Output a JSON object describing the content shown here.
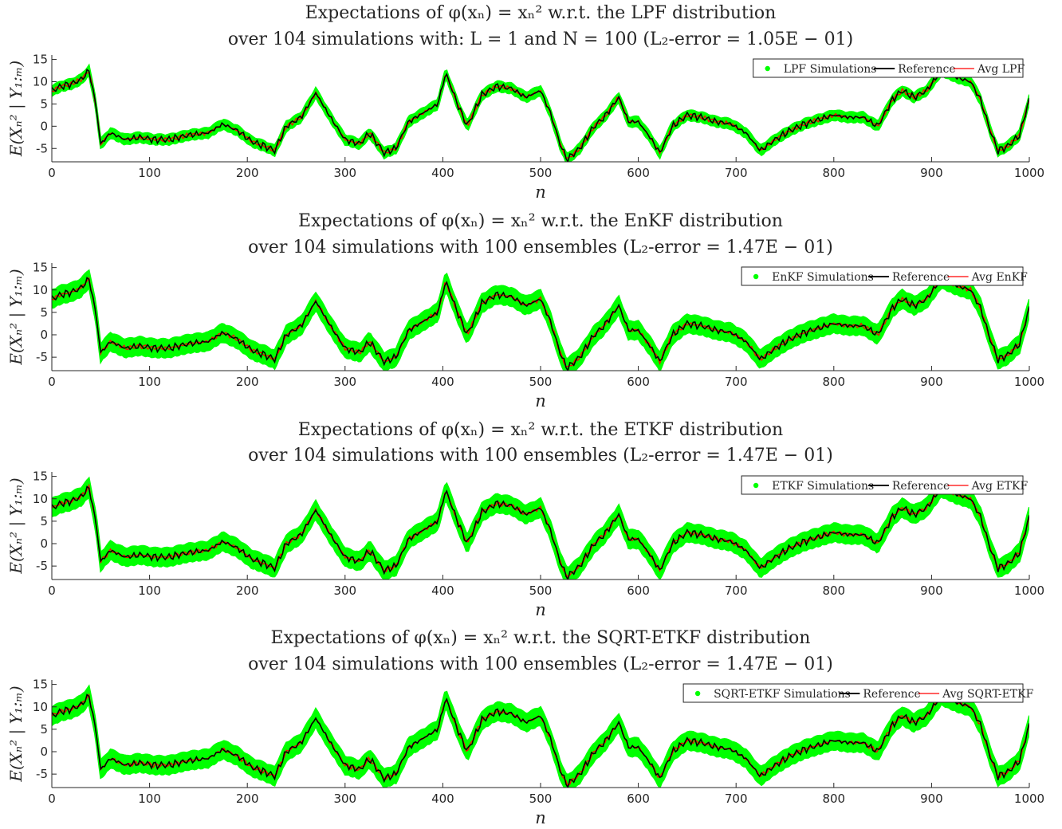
{
  "chart_data": [
    {
      "type": "line",
      "title": "Expectations of φ(xₙ) = xₙ² w.r.t. the LPF distribution",
      "subtitle": "over 104 simulations with: L = 1 and N = 100 (L₂-error = 1.05E − 01)",
      "xlabel": "n",
      "ylabel": "E(Xₙ² | Y₁:ₘ)",
      "xlim": [
        0,
        1000
      ],
      "ylim": [
        -8,
        16
      ],
      "xticks": [
        0,
        100,
        200,
        300,
        400,
        500,
        600,
        700,
        800,
        900,
        1000
      ],
      "yticks": [
        -5,
        0,
        5,
        10,
        15
      ],
      "band_halfwidth": 0.9,
      "grid": false,
      "legend_position": "top-right",
      "series": [
        {
          "name": "LPF Simulations",
          "color": "#00ff00",
          "style": "band"
        },
        {
          "name": "Reference",
          "color": "#000000",
          "style": "line"
        },
        {
          "name": "Avg LPF",
          "color": "#ff0000",
          "style": "line"
        }
      ]
    },
    {
      "type": "line",
      "title": "Expectations of φ(xₙ) = xₙ² w.r.t. the EnKF distribution",
      "subtitle": "over 104 simulations with 100 ensembles (L₂-error = 1.47E − 01)",
      "xlabel": "n",
      "ylabel": "E(Xₙ² | Y₁:ₘ)",
      "xlim": [
        0,
        1000
      ],
      "ylim": [
        -8,
        16
      ],
      "xticks": [
        0,
        100,
        200,
        300,
        400,
        500,
        600,
        700,
        800,
        900,
        1000
      ],
      "yticks": [
        -5,
        0,
        5,
        10,
        15
      ],
      "band_halfwidth": 1.8,
      "grid": false,
      "legend_position": "top-right",
      "series": [
        {
          "name": "EnKF Simulations",
          "color": "#00ff00",
          "style": "band"
        },
        {
          "name": "Reference",
          "color": "#000000",
          "style": "line"
        },
        {
          "name": "Avg EnKF",
          "color": "#ff0000",
          "style": "line"
        }
      ]
    },
    {
      "type": "line",
      "title": "Expectations of φ(xₙ) = xₙ² w.r.t. the ETKF distribution",
      "subtitle": "over 104 simulations with 100 ensembles (L₂-error = 1.47E − 01)",
      "xlabel": "n",
      "ylabel": "E(Xₙ² | Y₁:ₘ)",
      "xlim": [
        0,
        1000
      ],
      "ylim": [
        -8,
        16
      ],
      "xticks": [
        0,
        100,
        200,
        300,
        400,
        500,
        600,
        700,
        800,
        900,
        1000
      ],
      "yticks": [
        -5,
        0,
        5,
        10,
        15
      ],
      "band_halfwidth": 1.8,
      "grid": false,
      "legend_position": "top-right",
      "series": [
        {
          "name": "ETKF Simulations",
          "color": "#00ff00",
          "style": "band"
        },
        {
          "name": "Reference",
          "color": "#000000",
          "style": "line"
        },
        {
          "name": "Avg ETKF",
          "color": "#ff0000",
          "style": "line"
        }
      ]
    },
    {
      "type": "line",
      "title": "Expectations of φ(xₙ) = xₙ² w.r.t. the SQRT-ETKF distribution",
      "subtitle": "over 104 simulations with 100 ensembles (L₂-error = 1.47E − 01)",
      "xlabel": "n",
      "ylabel": "E(Xₙ² | Y₁:ₘ)",
      "xlim": [
        0,
        1000
      ],
      "ylim": [
        -8,
        16
      ],
      "xticks": [
        0,
        100,
        200,
        300,
        400,
        500,
        600,
        700,
        800,
        900,
        1000
      ],
      "yticks": [
        -5,
        0,
        5,
        10,
        15
      ],
      "band_halfwidth": 1.8,
      "grid": false,
      "legend_position": "top-right",
      "series": [
        {
          "name": "SQRT-ETKF Simulations",
          "color": "#00ff00",
          "style": "band"
        },
        {
          "name": "Reference",
          "color": "#000000",
          "style": "line"
        },
        {
          "name": "Avg SQRT-ETKF",
          "color": "#ff0000",
          "style": "line"
        }
      ]
    }
  ],
  "reference_curve": {
    "x": [
      0,
      10,
      20,
      30,
      38,
      45,
      50,
      60,
      75,
      90,
      105,
      120,
      140,
      160,
      175,
      190,
      205,
      218,
      228,
      240,
      255,
      270,
      285,
      300,
      315,
      325,
      340,
      352,
      365,
      380,
      395,
      403,
      415,
      425,
      440,
      455,
      470,
      485,
      500,
      510,
      520,
      527,
      540,
      555,
      565,
      580,
      590,
      600,
      612,
      622,
      635,
      650,
      665,
      680,
      695,
      710,
      725,
      740,
      755,
      770,
      785,
      800,
      815,
      830,
      845,
      860,
      870,
      882,
      895,
      910,
      925,
      940,
      950,
      960,
      968,
      978,
      990,
      1000
    ],
    "y": [
      8,
      9,
      9.5,
      10.5,
      12.5,
      5,
      -4,
      -1.5,
      -3,
      -2.5,
      -3,
      -3,
      -2,
      -1.5,
      0.5,
      -1,
      -3.5,
      -4.5,
      -5.5,
      0,
      2,
      7.5,
      2,
      -3,
      -4,
      -1.5,
      -6,
      -5,
      1,
      3,
      5,
      12,
      5,
      0,
      7,
      9,
      8.5,
      6.5,
      8,
      3,
      -4,
      -7.5,
      -5,
      0,
      2,
      6.5,
      1,
      1,
      -2.5,
      -6,
      0,
      2.5,
      2,
      1,
      0.5,
      -1.5,
      -5.5,
      -3,
      -1,
      0.5,
      1.5,
      2.5,
      2,
      2,
      0,
      6,
      8,
      6.5,
      8,
      12.5,
      11,
      10,
      6,
      -1,
      -5.5,
      -4.5,
      -2,
      6
    ]
  }
}
